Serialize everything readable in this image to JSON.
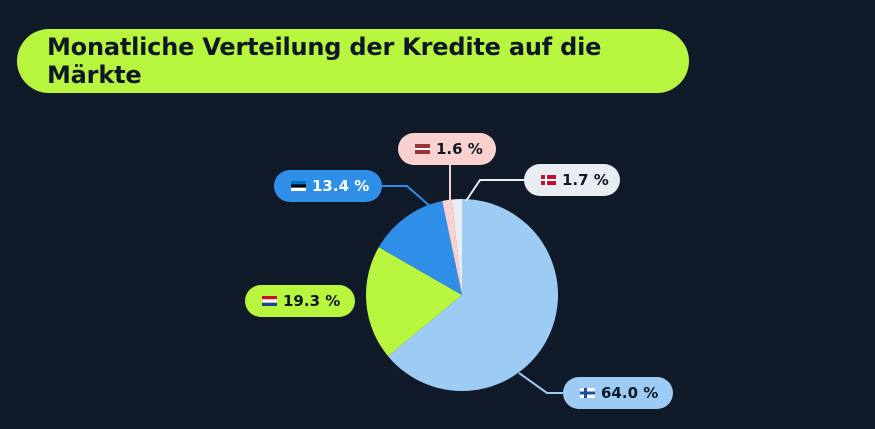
{
  "title": "Monatliche Verteilung der Kredite auf die Märkte",
  "chart_data": {
    "type": "pie",
    "start_angle_deg": 0,
    "direction": "clockwise",
    "slices": [
      {
        "label": "64.0 %",
        "value": 64.0,
        "flag": "finland-flag",
        "color": "#9ccbf3",
        "label_bg": "#9ccbf3",
        "label_fg": "#0f1726"
      },
      {
        "label": "19.3 %",
        "value": 19.3,
        "flag": "netherlands-flag",
        "color": "#b8f53e",
        "label_bg": "#b8f53e",
        "label_fg": "#0f1726"
      },
      {
        "label": "13.4 %",
        "value": 13.4,
        "flag": "estonia-flag",
        "color": "#2f8fe8",
        "label_bg": "#2f8fe8",
        "label_fg": "#ffffff"
      },
      {
        "label": "1.6 %",
        "value": 1.6,
        "flag": "latvia-flag",
        "color": "#f9d2d0",
        "label_bg": "#f9d2d0",
        "label_fg": "#0f1726"
      },
      {
        "label": "1.7 %",
        "value": 1.7,
        "flag": "denmark-flag",
        "color": "#e9ecf1",
        "label_bg": "#e9ecf1",
        "label_fg": "#0f1726"
      }
    ]
  },
  "colors": {
    "background": "#111a28",
    "title_pill": "#b8f53e",
    "title_text": "#0f1726",
    "leader_line": "#9ccbf3"
  }
}
